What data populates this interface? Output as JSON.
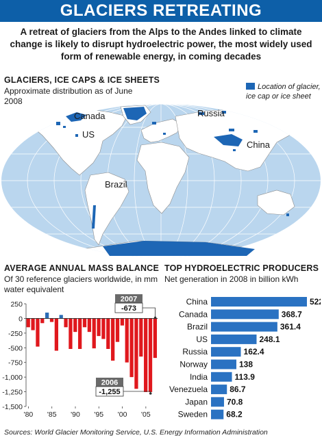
{
  "header": {
    "title": "GLACIERS RETREATING",
    "subtitle": "A retreat of glaciers from the Alps to the Andes linked to climate change is likely to disrupt hydroelectric power, the most widely used form of renewable energy, in coming decades"
  },
  "map": {
    "title": "GLACIERS, ICE CAPS & ICE SHEETS",
    "subtitle": "Approximate distribution as of June 2008",
    "legend": "Location of glacier, ice cap or ice sheet",
    "labels": [
      "Canada",
      "US",
      "Russia",
      "China",
      "Brazil"
    ]
  },
  "colors": {
    "banner": "#0d5fa8",
    "glacier": "#1d66b5",
    "ocean": "#bad6ee",
    "negative_bar": "#e0181d",
    "positive_bar": "#2a6cb6",
    "hydro_bar": "#2a72c2",
    "callout": "#6a6a6a"
  },
  "chart_data": [
    {
      "type": "bar",
      "title": "AVERAGE ANNUAL MASS BALANCE",
      "subtitle": "Of 30 reference glaciers worldwide, in mm water equivalent",
      "x": [
        1980,
        1981,
        1982,
        1983,
        1984,
        1985,
        1986,
        1987,
        1988,
        1989,
        1990,
        1991,
        1992,
        1993,
        1994,
        1995,
        1996,
        1997,
        1998,
        1999,
        2000,
        2001,
        2002,
        2003,
        2004,
        2005,
        2006,
        2007
      ],
      "values": [
        -150,
        -200,
        -480,
        -80,
        100,
        -60,
        -550,
        60,
        -150,
        -520,
        -230,
        -520,
        -150,
        -230,
        -510,
        -300,
        -350,
        -520,
        -720,
        -400,
        -120,
        -750,
        -1000,
        -1200,
        -650,
        -1255,
        -1255,
        -673
      ],
      "ylim": [
        -1500,
        250
      ],
      "yticks": [
        250,
        0,
        -250,
        -500,
        -750,
        -1000,
        -1250,
        -1500
      ],
      "ytick_labels": [
        "250",
        "0",
        "-250",
        "-500",
        "-750",
        "-1,000",
        "-1,250",
        "-1,500"
      ],
      "xtick_labels": [
        "'80",
        "'85",
        "'90",
        "'95",
        "'00",
        "'05"
      ],
      "xtick_years": [
        1980,
        1985,
        1990,
        1995,
        2000,
        2005
      ],
      "annotations": [
        {
          "year": "2007",
          "value": "-673"
        },
        {
          "year": "2006",
          "value": "-1,255"
        }
      ]
    },
    {
      "type": "bar",
      "orientation": "horizontal",
      "title": "TOP HYDROELECTRIC PRODUCERS",
      "subtitle": "Net generation in 2008 in billion kWh",
      "categories": [
        "China",
        "Canada",
        "Brazil",
        "US",
        "Russia",
        "Norway",
        "India",
        "Venezuela",
        "Japan",
        "Sweden"
      ],
      "values": [
        522.4,
        368.7,
        361.4,
        248.1,
        162.4,
        138,
        113.9,
        86.7,
        70.8,
        68.2
      ],
      "value_labels": [
        "522.4",
        "368.7",
        "361.4",
        "248.1",
        "162.4",
        "138",
        "113.9",
        "86.7",
        "70.8",
        "68.2"
      ]
    }
  ],
  "sources": "Sources: World Glacier Monitoring Service, U.S. Energy Information Administration"
}
